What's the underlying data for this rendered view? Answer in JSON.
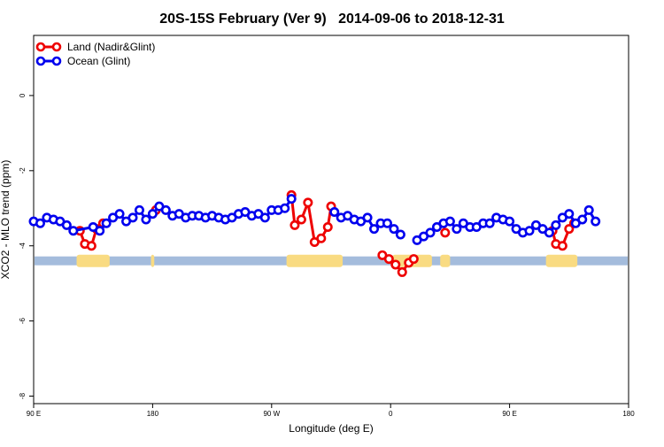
{
  "chart_data": {
    "type": "line",
    "title": "20S-15S February (Ver 9)   2014-09-06 to 2018-12-31",
    "xlabel": "Longitude (deg E)",
    "ylabel": "XCO2 - MLO trend (ppm)",
    "xlim": [
      90,
      450
    ],
    "ylim": [
      -8.2,
      1.6
    ],
    "x_ticks": [
      {
        "value": 90,
        "label": "90 E"
      },
      {
        "value": 162,
        "label": "180"
      },
      {
        "value": 234,
        "label": "90 W"
      },
      {
        "value": 306,
        "label": "0"
      },
      {
        "value": 378,
        "label": "90 E"
      },
      {
        "value": 450,
        "label": "180"
      }
    ],
    "y_ticks": [
      0,
      -2,
      -4,
      -6,
      -8
    ],
    "legend_position": "top-left",
    "land_strip": {
      "y": -4.4,
      "ocean_color": "#a4bcdc",
      "land_color": "#f9db82",
      "land_ranges": [
        [
          116,
          136
        ],
        [
          161,
          163
        ],
        [
          243,
          277
        ],
        [
          307,
          331
        ],
        [
          336,
          342
        ],
        [
          400,
          419
        ]
      ]
    },
    "series": [
      {
        "name": "Land (Nadir&Glint)",
        "color": "#ee0000",
        "segments": [
          [
            [
              118,
              -3.6
            ],
            [
              121,
              -3.95
            ],
            [
              125,
              -4.0
            ],
            [
              128,
              -3.55
            ],
            [
              132,
              -3.4
            ]
          ],
          [
            [
              164,
              -3.05
            ]
          ],
          [
            [
              246,
              -2.65
            ],
            [
              248,
              -3.45
            ],
            [
              252,
              -3.3
            ],
            [
              256,
              -2.85
            ],
            [
              260,
              -3.9
            ],
            [
              264,
              -3.8
            ],
            [
              268,
              -3.5
            ],
            [
              270,
              -2.95
            ]
          ],
          [
            [
              301,
              -4.25
            ],
            [
              305,
              -4.35
            ],
            [
              309,
              -4.5
            ],
            [
              313,
              -4.7
            ],
            [
              317,
              -4.45
            ],
            [
              320,
              -4.35
            ]
          ],
          [
            [
              339,
              -3.65
            ]
          ],
          [
            [
              404,
              -3.6
            ],
            [
              406,
              -3.95
            ],
            [
              410,
              -4.0
            ],
            [
              414,
              -3.55
            ],
            [
              417,
              -3.4
            ]
          ]
        ]
      },
      {
        "name": "Ocean (Glint)",
        "color": "#0000ee",
        "segments": [
          [
            [
              90,
              -3.35
            ],
            [
              94,
              -3.4
            ],
            [
              98,
              -3.25
            ],
            [
              102,
              -3.3
            ],
            [
              106,
              -3.35
            ],
            [
              110,
              -3.45
            ],
            [
              114,
              -3.6
            ],
            [
              126,
              -3.5
            ],
            [
              130,
              -3.6
            ],
            [
              134,
              -3.4
            ],
            [
              138,
              -3.25
            ],
            [
              142,
              -3.15
            ],
            [
              146,
              -3.35
            ],
            [
              150,
              -3.25
            ],
            [
              154,
              -3.05
            ],
            [
              158,
              -3.3
            ],
            [
              162,
              -3.15
            ],
            [
              166,
              -2.95
            ],
            [
              170,
              -3.05
            ],
            [
              174,
              -3.2
            ],
            [
              178,
              -3.15
            ],
            [
              182,
              -3.25
            ],
            [
              186,
              -3.2
            ],
            [
              190,
              -3.2
            ],
            [
              194,
              -3.25
            ],
            [
              198,
              -3.2
            ],
            [
              202,
              -3.25
            ],
            [
              206,
              -3.3
            ],
            [
              210,
              -3.25
            ],
            [
              214,
              -3.15
            ],
            [
              218,
              -3.1
            ],
            [
              222,
              -3.2
            ],
            [
              226,
              -3.15
            ],
            [
              230,
              -3.25
            ],
            [
              234,
              -3.05
            ],
            [
              238,
              -3.05
            ],
            [
              242,
              -3.0
            ],
            [
              246,
              -2.75
            ]
          ],
          [
            [
              272,
              -3.1
            ],
            [
              276,
              -3.25
            ],
            [
              280,
              -3.2
            ],
            [
              284,
              -3.3
            ],
            [
              288,
              -3.35
            ],
            [
              292,
              -3.25
            ],
            [
              296,
              -3.55
            ],
            [
              300,
              -3.4
            ],
            [
              304,
              -3.4
            ],
            [
              308,
              -3.55
            ],
            [
              312,
              -3.7
            ]
          ],
          [
            [
              322,
              -3.85
            ],
            [
              326,
              -3.75
            ],
            [
              330,
              -3.65
            ],
            [
              334,
              -3.5
            ],
            [
              338,
              -3.4
            ],
            [
              342,
              -3.35
            ],
            [
              346,
              -3.55
            ],
            [
              350,
              -3.4
            ],
            [
              354,
              -3.5
            ],
            [
              358,
              -3.5
            ],
            [
              362,
              -3.4
            ],
            [
              366,
              -3.4
            ],
            [
              370,
              -3.25
            ],
            [
              374,
              -3.3
            ],
            [
              378,
              -3.35
            ],
            [
              382,
              -3.55
            ],
            [
              386,
              -3.65
            ],
            [
              390,
              -3.6
            ],
            [
              394,
              -3.45
            ],
            [
              398,
              -3.55
            ],
            [
              402,
              -3.65
            ],
            [
              406,
              -3.45
            ],
            [
              410,
              -3.25
            ],
            [
              414,
              -3.15
            ],
            [
              418,
              -3.4
            ],
            [
              422,
              -3.3
            ],
            [
              426,
              -3.05
            ],
            [
              430,
              -3.35
            ]
          ]
        ]
      }
    ]
  }
}
